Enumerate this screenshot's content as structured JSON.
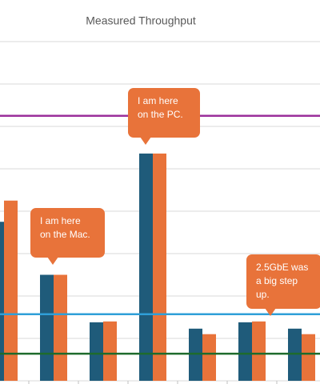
{
  "chart_data": {
    "type": "bar",
    "title": "Measured Throughput",
    "categories": [
      null,
      null,
      null,
      null,
      null,
      null,
      null
    ],
    "series": [
      {
        "color": "#1f5b7a",
        "values": [
          3.75,
          2.5,
          1.38,
          5.36,
          1.23,
          1.38,
          1.23
        ]
      },
      {
        "color": "#e8733a",
        "values": [
          4.25,
          2.5,
          1.4,
          5.36,
          1.1,
          1.4,
          1.1
        ]
      }
    ],
    "ylim": [
      0,
      8
    ],
    "yticks": [
      0,
      1,
      2,
      3,
      4,
      5,
      6,
      7,
      8
    ],
    "grid": true,
    "reference_lines": [
      {
        "value": 6.25,
        "color": "#9b2f9b"
      },
      {
        "value": 1.57,
        "color": "#2f9fd8"
      },
      {
        "value": 0.64,
        "color": "#1e6b2c"
      }
    ],
    "annotations": [
      {
        "lines": [
          "I am here",
          "on the PC."
        ],
        "color": "#e8733a"
      },
      {
        "lines": [
          "I am here",
          "on the Mac."
        ],
        "color": "#e8733a"
      },
      {
        "lines": [
          "2.5GbE was",
          "a big step",
          "up."
        ],
        "color": "#e8733a"
      }
    ]
  }
}
